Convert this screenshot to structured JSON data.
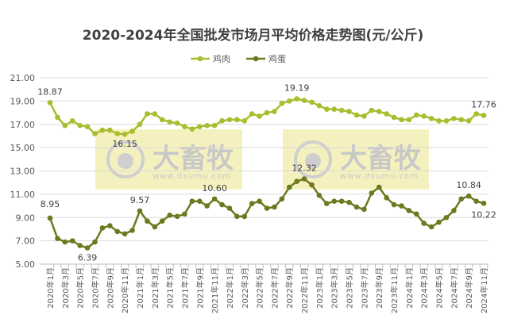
{
  "chart_data": {
    "type": "line",
    "title": "2020-2024年全国批发市场月平均价格走势图(元/公斤)",
    "xlabel": "",
    "ylabel": "",
    "ylim": [
      5,
      21
    ],
    "yticks": [
      "5.00",
      "7.00",
      "9.00",
      "11.00",
      "13.00",
      "15.00",
      "17.00",
      "19.00",
      "21.00"
    ],
    "grid": true,
    "legend_position": "top",
    "x": [
      "2020年1月",
      "2020年2月",
      "2020年3月",
      "2020年4月",
      "2020年5月",
      "2020年6月",
      "2020年7月",
      "2020年8月",
      "2020年9月",
      "2020年10月",
      "2020年11月",
      "2020年12月",
      "2021年1月",
      "2021年2月",
      "2021年3月",
      "2021年4月",
      "2021年5月",
      "2021年6月",
      "2021年7月",
      "2021年8月",
      "2021年9月",
      "2021年10月",
      "2021年11月",
      "2021年12月",
      "2022年1月",
      "2022年2月",
      "2022年3月",
      "2022年4月",
      "2022年5月",
      "2022年6月",
      "2022年7月",
      "2022年8月",
      "2022年9月",
      "2022年10月",
      "2022年11月",
      "2022年12月",
      "2023年1月",
      "2023年2月",
      "2023年3月",
      "2023年4月",
      "2023年5月",
      "2023年6月",
      "2023年7月",
      "2023年8月",
      "2023年9月",
      "2023年10月",
      "2023年11月",
      "2023年12月",
      "2024年1月",
      "2024年2月",
      "2024年3月",
      "2024年4月",
      "2024年5月",
      "2024年6月",
      "2024年7月",
      "2024年8月",
      "2024年9月",
      "2024年10月",
      "2024年11月"
    ],
    "series": [
      {
        "name": "鸡肉",
        "color": "#a9bd2f",
        "values": [
          18.87,
          17.6,
          16.9,
          17.3,
          16.9,
          16.8,
          16.2,
          16.5,
          16.5,
          16.2,
          16.15,
          16.4,
          17.0,
          17.9,
          17.9,
          17.4,
          17.2,
          17.1,
          16.8,
          16.6,
          16.8,
          16.9,
          16.9,
          17.3,
          17.4,
          17.4,
          17.3,
          17.9,
          17.7,
          18.0,
          18.1,
          18.8,
          19.0,
          19.19,
          19.05,
          18.9,
          18.6,
          18.3,
          18.3,
          18.2,
          18.1,
          17.8,
          17.7,
          18.2,
          18.1,
          17.9,
          17.6,
          17.4,
          17.4,
          17.8,
          17.7,
          17.5,
          17.3,
          17.3,
          17.5,
          17.4,
          17.3,
          17.9,
          17.76
        ],
        "labels": {
          "0": "18.87",
          "10": "16.15",
          "33": "19.19",
          "58": "17.76"
        }
      },
      {
        "name": "鸡蛋",
        "color": "#6b7a1e",
        "values": [
          8.95,
          7.2,
          6.9,
          7.0,
          6.6,
          6.39,
          6.9,
          8.1,
          8.3,
          7.8,
          7.6,
          7.9,
          9.57,
          8.7,
          8.2,
          8.7,
          9.2,
          9.1,
          9.3,
          10.4,
          10.4,
          10.0,
          10.6,
          10.1,
          9.8,
          9.1,
          9.1,
          10.2,
          10.4,
          9.8,
          9.9,
          10.6,
          11.6,
          12.1,
          12.32,
          11.8,
          10.9,
          10.2,
          10.4,
          10.4,
          10.3,
          9.9,
          9.7,
          11.1,
          11.6,
          10.7,
          10.1,
          10.0,
          9.6,
          9.3,
          8.5,
          8.2,
          8.6,
          9.0,
          9.6,
          10.6,
          10.84,
          10.4,
          10.22
        ],
        "labels": {
          "0": "8.95",
          "5": "6.39",
          "12": "9.57",
          "22": "10.60",
          "34": "12.32",
          "56": "10.84",
          "58": "10.22"
        }
      }
    ]
  },
  "watermark": {
    "brand": "大畜牧",
    "url": "www.dxumu.com"
  }
}
